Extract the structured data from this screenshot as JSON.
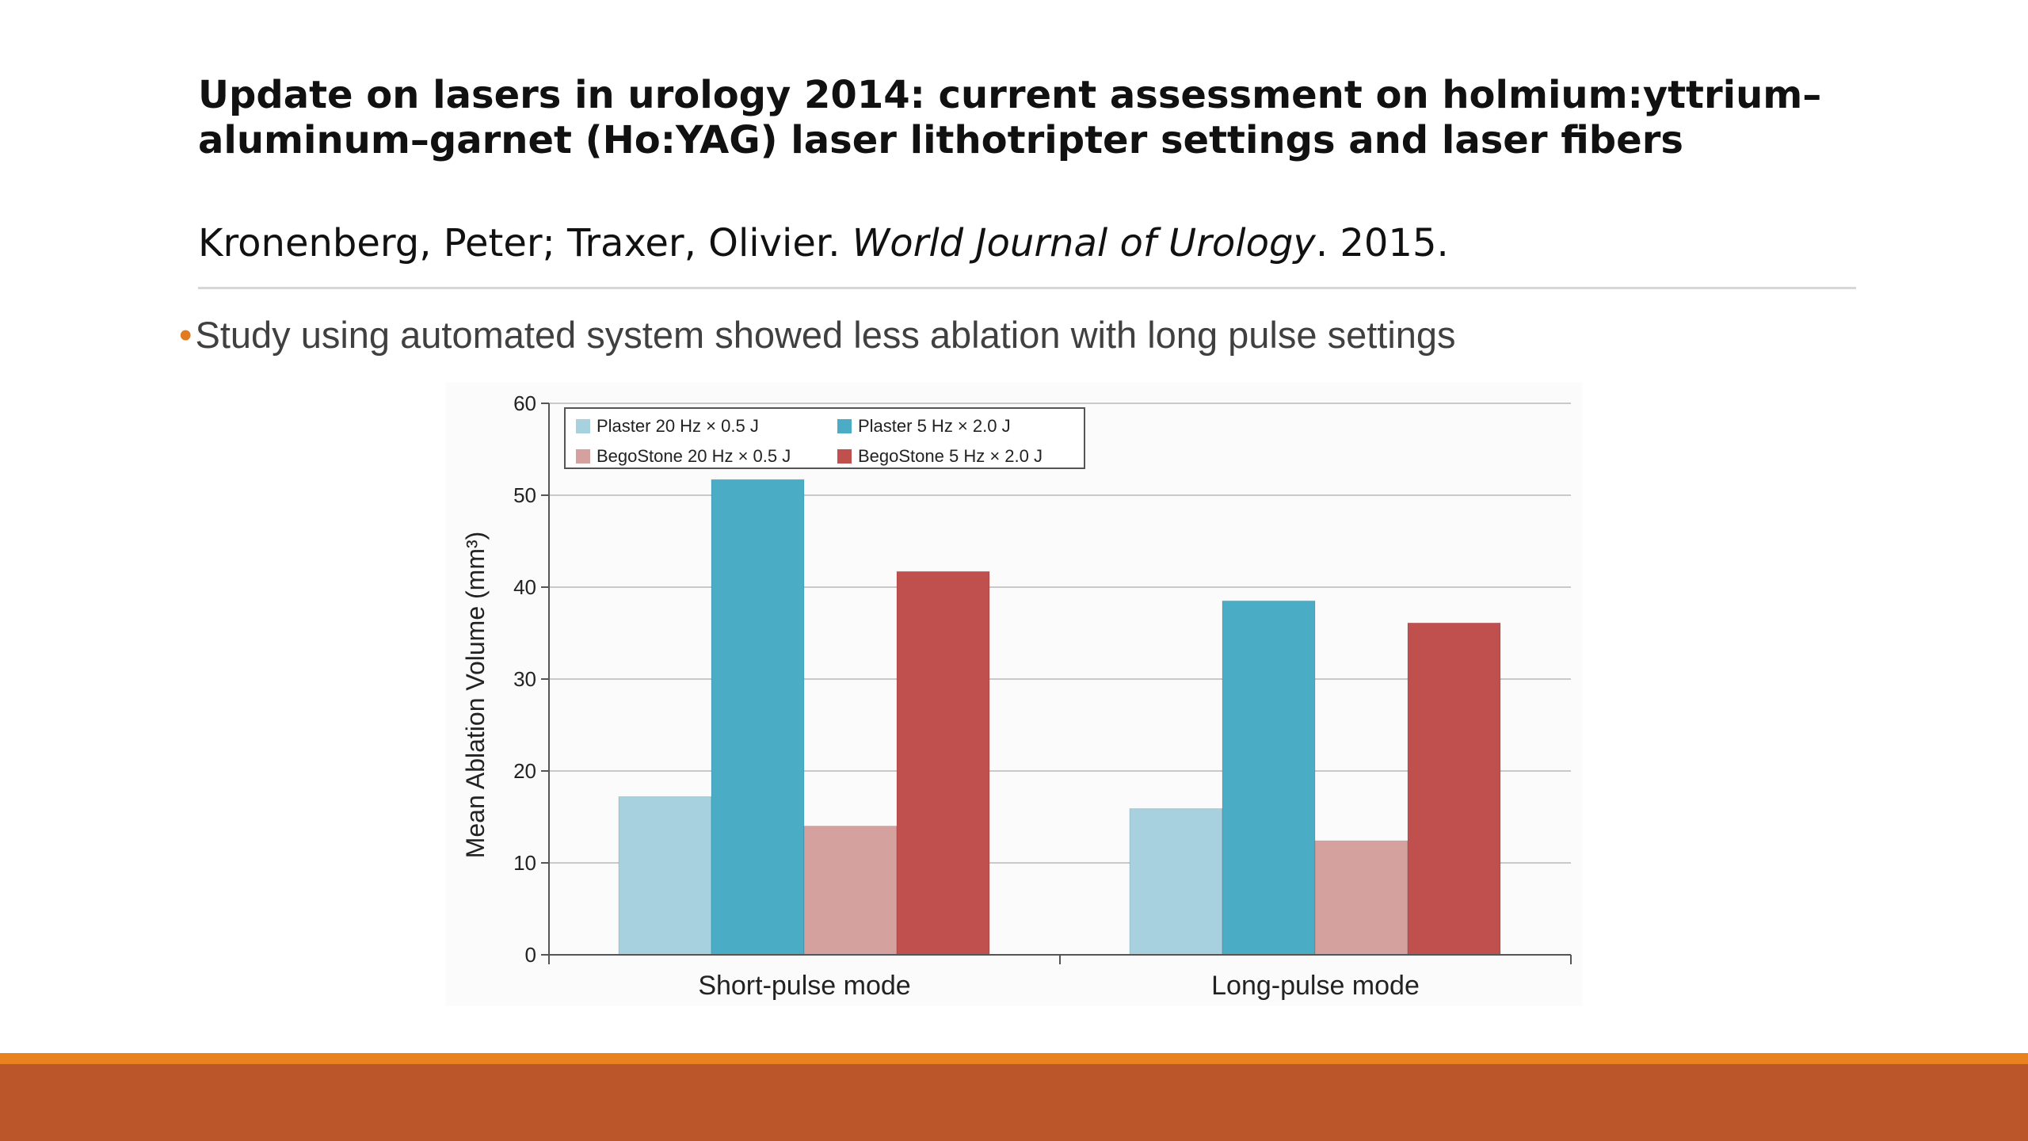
{
  "slide": {
    "title": "Update on lasers in urology 2014: current assessment on holmium:yttrium–aluminum–garnet (Ho:YAG) laser lithotripter settings and laser fibers",
    "authors": "Kronenberg, Peter; Traxer, Olivier. ",
    "journal": "World Journal of Urology",
    "year": ". 2015.",
    "bullet_marker": "•",
    "bullet_text": "Study using automated system showed less ablation with long pulse settings"
  },
  "chart_data": {
    "type": "bar",
    "title": "",
    "xlabel": "",
    "ylabel": "Mean Ablation Volume (mm³)",
    "ylim": [
      0,
      60
    ],
    "yticks": [
      0,
      10,
      20,
      30,
      40,
      50,
      60
    ],
    "grid": true,
    "legend_position": "top-left",
    "categories": [
      "Short-pulse mode",
      "Long-pulse mode"
    ],
    "series": [
      {
        "name": "Plaster 20 Hz × 0.5 J",
        "values": [
          17.2,
          15.9
        ],
        "color": "#a8d1df"
      },
      {
        "name": "Plaster 5 Hz × 2.0 J",
        "values": [
          51.7,
          38.5
        ],
        "color": "#4bacc6"
      },
      {
        "name": "BegoStone 20 Hz × 0.5 J",
        "values": [
          14.0,
          12.4
        ],
        "color": "#d4a19f"
      },
      {
        "name": "BegoStone 5 Hz × 2.0 J",
        "values": [
          41.7,
          36.1
        ],
        "color": "#c0504d"
      }
    ]
  },
  "colors": {
    "footer_accent": "#e8821f",
    "footer_bar": "#bb562a",
    "bullet_dot": "#e07b1f"
  }
}
